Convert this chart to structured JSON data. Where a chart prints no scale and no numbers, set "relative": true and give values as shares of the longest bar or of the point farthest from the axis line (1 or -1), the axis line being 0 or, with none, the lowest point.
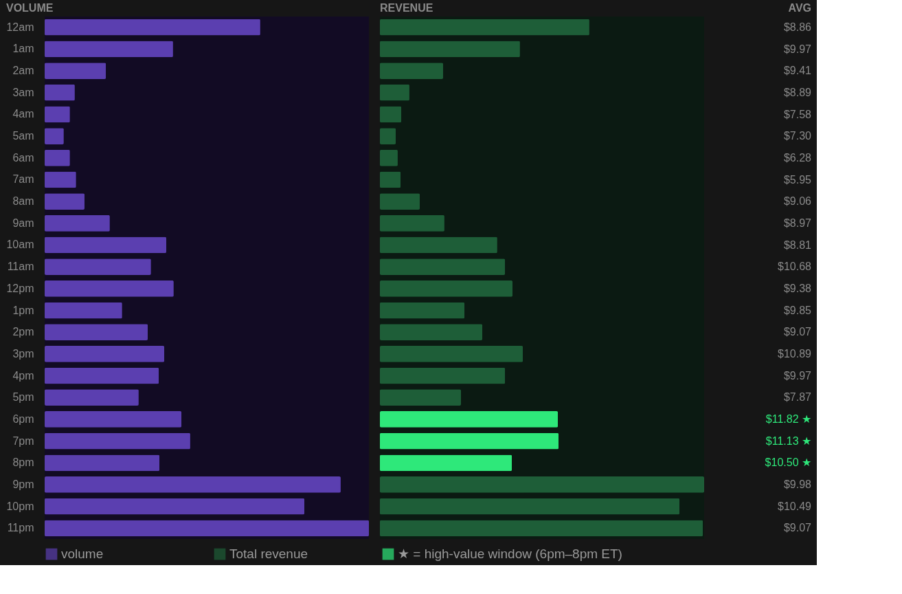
{
  "chart_data": [
    {
      "type": "bar",
      "orientation": "horizontal",
      "relative": true,
      "title": "VOLUME",
      "tick_labels": "y",
      "legend": "bottom",
      "grid": false,
      "categories": [
        "12am",
        "1am",
        "2am",
        "3am",
        "4am",
        "5am",
        "6am",
        "7am",
        "8am",
        "9am",
        "10am",
        "11am",
        "12pm",
        "1pm",
        "2pm",
        "3pm",
        "4pm",
        "5pm",
        "6pm",
        "7pm",
        "8pm",
        "9pm",
        "10pm",
        "11pm"
      ],
      "series": [
        {
          "name": "volume",
          "color": "#5b3fb0",
          "values": [
            0.665,
            0.396,
            0.189,
            0.093,
            0.078,
            0.059,
            0.078,
            0.097,
            0.123,
            0.201,
            0.375,
            0.328,
            0.398,
            0.239,
            0.318,
            0.369,
            0.352,
            0.29,
            0.422,
            0.449,
            0.354,
            0.913,
            0.801,
            1
          ]
        }
      ]
    },
    {
      "type": "bar",
      "orientation": "horizontal",
      "relative": true,
      "title": "REVENUE",
      "tick_labels": false,
      "grid": false,
      "categories": [
        null,
        null,
        null,
        null,
        null,
        null,
        null,
        null,
        null,
        null,
        null,
        null,
        null,
        null,
        null,
        null,
        null,
        null,
        null,
        null,
        null,
        null,
        null,
        null
      ],
      "series": [
        {
          "name": "Total revenue",
          "color": "#1e5e38",
          "colors": [
            "#1e5e38",
            "#1e5e38",
            "#1e5e38",
            "#1e5e38",
            "#1e5e38",
            "#1e5e38",
            "#1e5e38",
            "#1e5e38",
            "#1e5e38",
            "#1e5e38",
            "#1e5e38",
            "#1e5e38",
            "#1e5e38",
            "#1e5e38",
            "#1e5e38",
            "#1e5e38",
            "#1e5e38",
            "#1e5e38",
            "#2ee87a",
            "#2ee87a",
            "#2ee87a",
            "#1e5e38",
            "#1e5e38",
            "#1e5e38"
          ],
          "values": [
            0.646,
            0.432,
            0.195,
            0.091,
            0.066,
            0.049,
            0.055,
            0.064,
            0.123,
            0.199,
            0.362,
            0.386,
            0.409,
            0.261,
            0.316,
            0.441,
            0.386,
            0.25,
            0.549,
            0.551,
            0.407,
            1,
            0.924,
            0.996
          ]
        }
      ],
      "annotations": [
        "★ = high-value window (6pm–8pm ET)"
      ]
    },
    {
      "type": "other",
      "title": "AVG",
      "annotations": [
        "$8.86",
        "$9.97",
        "$9.41",
        "$8.89",
        "$7.58",
        "$7.30",
        "$6.28",
        "$5.95",
        "$9.06",
        "$8.97",
        "$8.81",
        "$10.68",
        "$9.38",
        "$9.85",
        "$9.07",
        "$10.89",
        "$9.97",
        "$7.87",
        "$11.82 ★",
        "$11.13 ★",
        "$10.50 ★",
        "$9.98",
        "$10.49",
        "$9.07"
      ],
      "colors": [
        "#8a8a8a",
        "#8a8a8a",
        "#8a8a8a",
        "#8a8a8a",
        "#8a8a8a",
        "#8a8a8a",
        "#8a8a8a",
        "#8a8a8a",
        "#8a8a8a",
        "#8a8a8a",
        "#8a8a8a",
        "#8a8a8a",
        "#8a8a8a",
        "#8a8a8a",
        "#8a8a8a",
        "#8a8a8a",
        "#8a8a8a",
        "#8a8a8a",
        "#2ee87a",
        "#2ee87a",
        "#2ee87a",
        "#8a8a8a",
        "#8a8a8a",
        "#8a8a8a"
      ]
    }
  ]
}
